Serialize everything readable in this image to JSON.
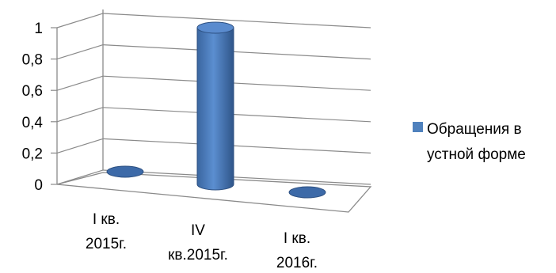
{
  "chart_data": {
    "type": "bar",
    "style": "3d-cylinder",
    "categories": [
      [
        "I кв.",
        "2015г."
      ],
      [
        "IV",
        "кв.2015г."
      ],
      [
        "I кв.",
        "2016г."
      ]
    ],
    "series": [
      {
        "name": "Обращения в устной форме",
        "values": [
          0,
          1,
          0
        ],
        "color": "#4f81bd"
      }
    ],
    "yticks": [
      "0",
      "0,2",
      "0,4",
      "0,6",
      "0,8",
      "1"
    ],
    "ylim": [
      0,
      1
    ],
    "grid": true,
    "legend_position": "right",
    "legend_lines": [
      "Обращения в",
      "устной форме"
    ]
  }
}
